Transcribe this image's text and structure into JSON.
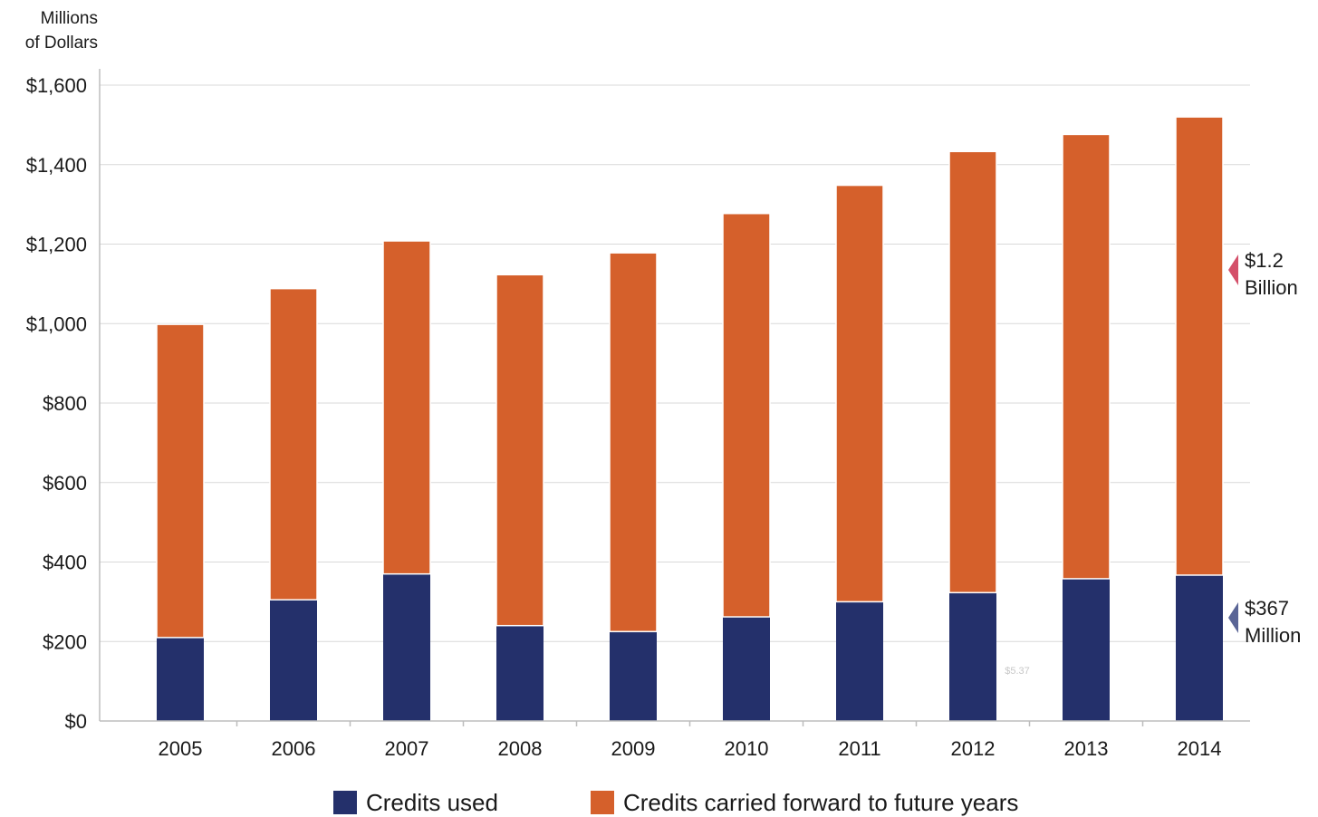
{
  "chart_data": {
    "type": "bar",
    "stacked": true,
    "ylabel": [
      "Millions",
      "of Dollars"
    ],
    "ylim": [
      0,
      1600
    ],
    "yticks": [
      0,
      200,
      400,
      600,
      800,
      1000,
      1200,
      1400,
      1600
    ],
    "ytick_labels": [
      "$0",
      "$200",
      "$400",
      "$600",
      "$800",
      "$1,000",
      "$1,200",
      "$1,400",
      "$1,600"
    ],
    "categories": [
      "2005",
      "2006",
      "2007",
      "2008",
      "2009",
      "2010",
      "2011",
      "2012",
      "2013",
      "2014"
    ],
    "series": [
      {
        "name": "Credits used",
        "color": "#24306b",
        "values": [
          210,
          305,
          370,
          240,
          225,
          262,
          300,
          323,
          358,
          367
        ]
      },
      {
        "name": "Credits carried forward to future years",
        "color": "#d5602b",
        "values": [
          788,
          783,
          838,
          883,
          953,
          1015,
          1048,
          1110,
          1118,
          1153
        ]
      }
    ],
    "grid": true,
    "legend_position": "bottom",
    "annotations": [
      {
        "label_lines": [
          "$1.2",
          "Billion"
        ],
        "value": 1153,
        "color": "#d4506a"
      },
      {
        "label_lines": [
          "$367",
          "Million"
        ],
        "value": 367,
        "color": "#5a6596"
      }
    ],
    "watermark": "$5.37"
  }
}
